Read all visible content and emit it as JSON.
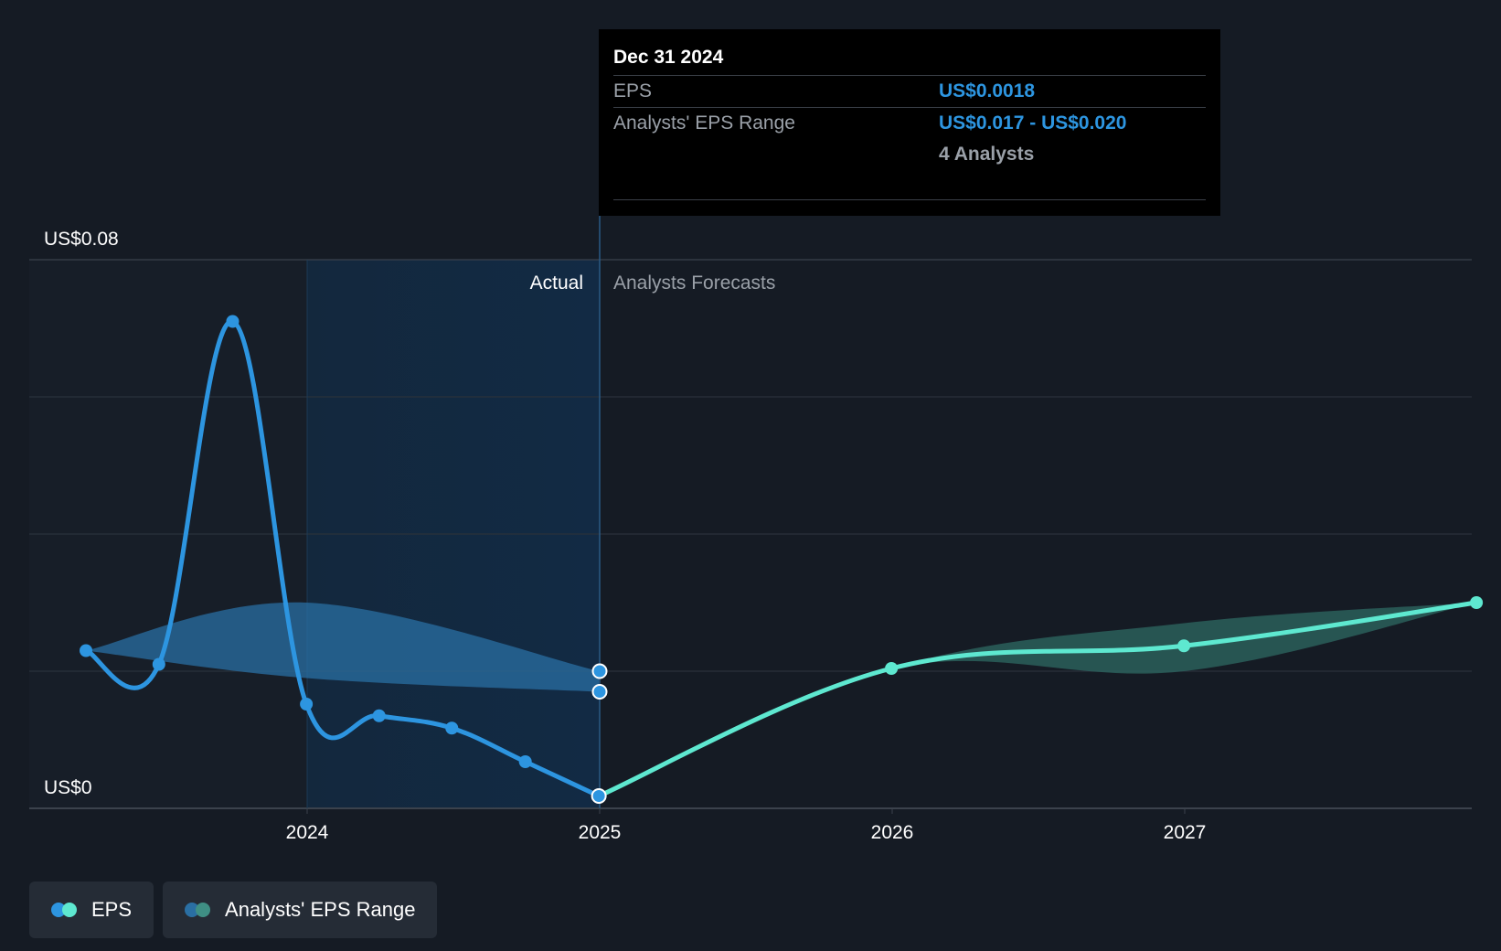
{
  "tooltip": {
    "date": "Dec 31 2024",
    "eps_label": "EPS",
    "eps_value": "US$0.0018",
    "range_label": "Analysts' EPS Range",
    "range_value": "US$0.017 - US$0.020",
    "analysts": "4 Analysts"
  },
  "section_labels": {
    "actual": "Actual",
    "forecast": "Analysts Forecasts"
  },
  "legend": {
    "eps": "EPS",
    "range": "Analysts' EPS Range"
  },
  "colors": {
    "background": "#151b24",
    "actual_eps": "#2d95e0",
    "forecast_eps": "#5ee8d0",
    "actual_range": "#2a6fa3",
    "forecast_range": "#2f6e66",
    "actual_shade": "#13314d"
  },
  "chart_data": {
    "type": "line",
    "ylim": [
      0,
      0.08
    ],
    "y_tick_labels": [
      "US$0",
      "US$0.08"
    ],
    "x_tick_labels": [
      "2024",
      "2025",
      "2026",
      "2027"
    ],
    "grid": true,
    "divider_date": "2024-12-31",
    "series": [
      {
        "name": "EPS",
        "kind": "actual",
        "x": [
          "2023-03-31",
          "2023-06-30",
          "2023-09-30",
          "2023-12-31",
          "2024-03-31",
          "2024-06-30",
          "2024-09-30",
          "2024-12-31"
        ],
        "y": [
          0.023,
          0.021,
          0.071,
          0.0152,
          0.0135,
          0.0117,
          0.0068,
          0.0018
        ]
      },
      {
        "name": "EPS",
        "kind": "forecast",
        "x": [
          "2024-12-31",
          "2025-12-31",
          "2026-12-31",
          "2027-12-31"
        ],
        "y": [
          0.0018,
          0.0204,
          0.0237,
          0.03
        ]
      }
    ],
    "ranges": [
      {
        "name": "Analysts' EPS Range",
        "kind": "actual",
        "x": [
          "2023-03-31",
          "2023-12-31",
          "2024-12-31"
        ],
        "low": [
          0.023,
          0.019,
          0.017
        ],
        "high": [
          0.023,
          0.03,
          0.02
        ]
      },
      {
        "name": "Analysts' EPS Range",
        "kind": "forecast",
        "x": [
          "2024-12-31",
          "2025-12-31",
          "2026-12-31",
          "2027-12-31"
        ],
        "low": [
          0.0018,
          0.0204,
          0.02,
          0.03
        ],
        "high": [
          0.0018,
          0.0204,
          0.027,
          0.03
        ]
      }
    ],
    "tooltip_markers": [
      0.02,
      0.017
    ]
  }
}
